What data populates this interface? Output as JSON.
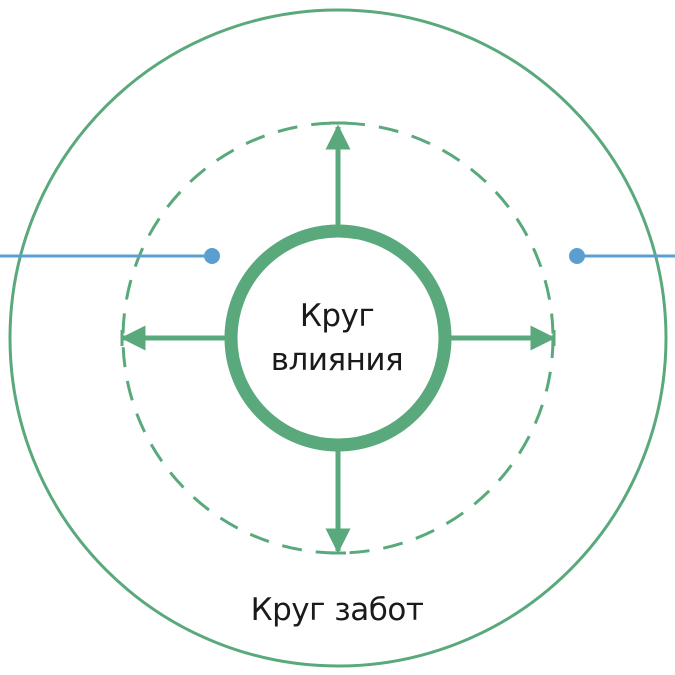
{
  "labels": {
    "influence_line1": "Круг",
    "influence_line2": "влияния",
    "concern": "Круг забот"
  },
  "colors": {
    "green": "#5aa97c",
    "blue": "#5b9fd1",
    "text": "#1a1a1a"
  }
}
